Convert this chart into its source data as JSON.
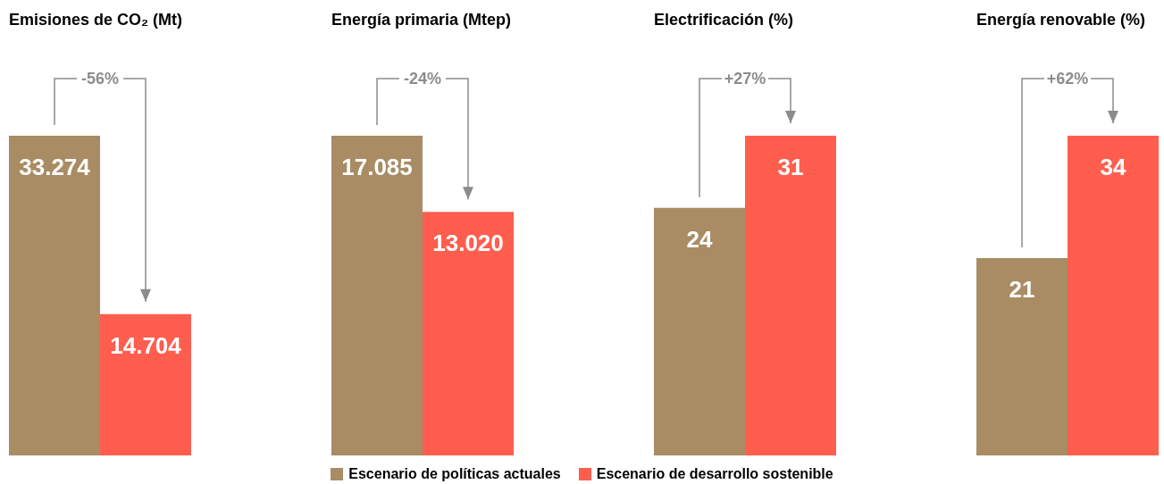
{
  "chart_data": [
    {
      "type": "bar",
      "title": "Emisiones de CO₂ (Mt)",
      "categories": [
        null
      ],
      "legend": "bottom",
      "annotations": [
        "-56%"
      ],
      "series": [
        {
          "name": "Escenario de políticas actuales",
          "color": "#a98c64",
          "values": [
            33274
          ],
          "value_labels": [
            "33.274"
          ]
        },
        {
          "name": "Escenario de desarrollo sostenible",
          "color": "#ff5e4f",
          "values": [
            14704
          ],
          "value_labels": [
            "14.704"
          ]
        }
      ]
    },
    {
      "type": "bar",
      "title": "Energía primaria (Mtep)",
      "categories": [
        null
      ],
      "annotations": [
        "-24%"
      ],
      "series": [
        {
          "color": "#a98c64",
          "values": [
            17085
          ],
          "value_labels": [
            "17.085"
          ]
        },
        {
          "color": "#ff5e4f",
          "values": [
            13020
          ],
          "value_labels": [
            "13.020"
          ]
        }
      ]
    },
    {
      "type": "bar",
      "title": "Electrificación (%)",
      "categories": [
        null
      ],
      "annotations": [
        "+27%"
      ],
      "series": [
        {
          "color": "#a98c64",
          "values": [
            24
          ],
          "value_labels": [
            "24"
          ]
        },
        {
          "color": "#ff5e4f",
          "values": [
            31
          ],
          "value_labels": [
            "31"
          ]
        }
      ]
    },
    {
      "type": "bar",
      "title": "Energía renovable (%)",
      "categories": [
        null
      ],
      "annotations": [
        "+62%"
      ],
      "series": [
        {
          "color": "#a98c64",
          "values": [
            21
          ],
          "value_labels": [
            "21"
          ]
        },
        {
          "color": "#ff5e4f",
          "values": [
            34
          ],
          "value_labels": [
            "34"
          ]
        }
      ]
    }
  ]
}
